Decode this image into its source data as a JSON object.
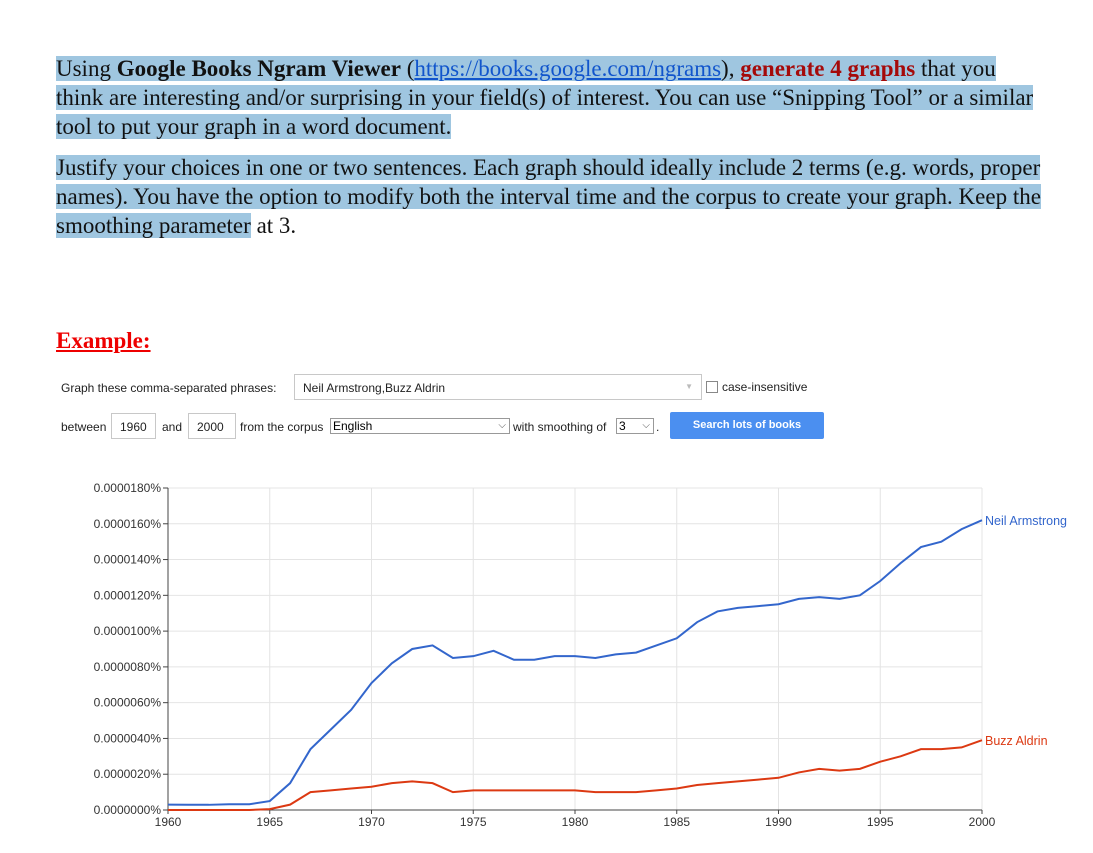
{
  "instructions": {
    "p1": {
      "t1": "Using ",
      "bold": "Google Books Ngram Viewer",
      "t2": " (",
      "link": "https://books.google.com/ngrams",
      "t3": "),",
      "red": "generate 4 graphs",
      "t4": " that you think are interesting and/or surprising in your field(s) of interest. You can use “Snipping Tool” or a similar tool to put your graph in a word document."
    },
    "p2": {
      "hl": "Justify your choices in one or two sentences. Each graph should ideally include 2 terms (e.g. words, proper names). You have the option to modify both the interval time and the corpus to create your graph. Keep the smoothing parameter",
      "tail": " at 3."
    },
    "example_heading": "Example:"
  },
  "ngram_form": {
    "phrases_label": "Graph these comma-separated phrases:",
    "phrases_value": "Neil Armstrong,Buzz Aldrin",
    "case_insensitive_label": "case-insensitive",
    "between_label": "between",
    "start_year": "1960",
    "and_label": "and",
    "end_year": "2000",
    "corpus_label": "from the corpus",
    "corpus_value": "English",
    "smoothing_label": "with smoothing of",
    "smoothing_value": "3",
    "period": ".",
    "search_button": "Search lots of books"
  },
  "chart_data": {
    "type": "line",
    "ylim": [
      0,
      1.8e-05
    ],
    "xlim": [
      1960,
      2000
    ],
    "y_ticks": [
      "0.0000000%",
      "0.0000020%",
      "0.0000040%",
      "0.0000060%",
      "0.0000080%",
      "0.0000100%",
      "0.0000120%",
      "0.0000140%",
      "0.0000160%",
      "0.0000180%"
    ],
    "x_ticks": [
      "1960",
      "1965",
      "1970",
      "1975",
      "1980",
      "1985",
      "1990",
      "1995",
      "2000"
    ],
    "grid": true,
    "x": [
      1960,
      1961,
      1962,
      1963,
      1964,
      1965,
      1966,
      1967,
      1968,
      1969,
      1970,
      1971,
      1972,
      1973,
      1974,
      1975,
      1976,
      1977,
      1978,
      1979,
      1980,
      1981,
      1982,
      1983,
      1984,
      1985,
      1986,
      1987,
      1988,
      1989,
      1990,
      1991,
      1992,
      1993,
      1994,
      1995,
      1996,
      1997,
      1998,
      1999,
      2000
    ],
    "series": [
      {
        "name": "Neil Armstrong",
        "color": "#3366cc",
        "values": [
          3e-07,
          2.9e-07,
          2.9e-07,
          3.2e-07,
          3.2e-07,
          5e-07,
          1.5e-06,
          3.4e-06,
          4.5e-06,
          5.6e-06,
          7.1e-06,
          8.2e-06,
          9e-06,
          9.2e-06,
          8.5e-06,
          8.6e-06,
          8.9e-06,
          8.4e-06,
          8.4e-06,
          8.6e-06,
          8.6e-06,
          8.5e-06,
          8.7e-06,
          8.8e-06,
          9.2e-06,
          9.6e-06,
          1.05e-05,
          1.11e-05,
          1.13e-05,
          1.14e-05,
          1.15e-05,
          1.18e-05,
          1.19e-05,
          1.18e-05,
          1.2e-05,
          1.28e-05,
          1.38e-05,
          1.47e-05,
          1.5e-05,
          1.57e-05,
          1.62e-05
        ]
      },
      {
        "name": "Buzz Aldrin",
        "color": "#dc3912",
        "values": [
          0.0,
          0.0,
          0.0,
          0.0,
          0.0,
          5e-08,
          3e-07,
          1e-06,
          1.1e-06,
          1.2e-06,
          1.3e-06,
          1.5e-06,
          1.6e-06,
          1.5e-06,
          1e-06,
          1.1e-06,
          1.1e-06,
          1.1e-06,
          1.1e-06,
          1.1e-06,
          1.1e-06,
          1e-06,
          1e-06,
          1e-06,
          1.1e-06,
          1.2e-06,
          1.4e-06,
          1.5e-06,
          1.6e-06,
          1.7e-06,
          1.8e-06,
          2.1e-06,
          2.3e-06,
          2.2e-06,
          2.3e-06,
          2.7e-06,
          3e-06,
          3.4e-06,
          3.4e-06,
          3.5e-06,
          3.9e-06
        ]
      }
    ]
  }
}
